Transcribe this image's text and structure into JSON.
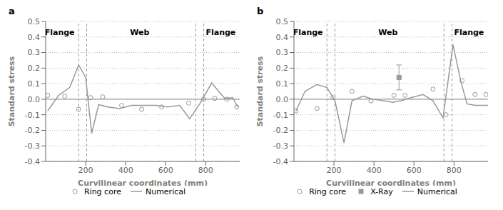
{
  "chart_data": [
    {
      "type": "line",
      "title": "a",
      "x_label": "Curvilinear coordinates (mm)",
      "y_label": "Standard stress",
      "xlim": [
        0,
        970
      ],
      "ylim": [
        -0.4,
        0.5
      ],
      "xticks": [
        200,
        400,
        600,
        800
      ],
      "yticks": [
        -0.4,
        -0.3,
        -0.2,
        -0.1,
        {
          "value": 0,
          "label": "0.0"
        },
        0.1,
        0.2,
        0.3,
        0.4,
        0.5
      ],
      "grid": true,
      "legend": "bottom",
      "vlines": [
        [
          165,
          205
        ],
        [
          750,
          790
        ]
      ],
      "annotations": [
        {
          "x": 70,
          "y": 0.43,
          "text": "Flange"
        },
        {
          "x": 470,
          "y": 0.43,
          "text": "Web"
        },
        {
          "x": 875,
          "y": 0.43,
          "text": "Flange"
        }
      ],
      "series": [
        {
          "name": "Ring core",
          "type": "scatter",
          "marker": "circle",
          "color": "#999999",
          "x": [
            10,
            95,
            165,
            225,
            285,
            380,
            480,
            580,
            715,
            790,
            845,
            905,
            955
          ],
          "values": [
            0.025,
            0.02,
            -0.065,
            0.01,
            0.015,
            -0.04,
            -0.065,
            -0.05,
            -0.025,
            0.0,
            0.005,
            0.0,
            -0.05
          ]
        },
        {
          "name": "Numerical",
          "type": "line",
          "line_style": "solid",
          "color": "#999999",
          "x": [
            10,
            65,
            120,
            165,
            200,
            230,
            265,
            310,
            370,
            430,
            490,
            550,
            610,
            670,
            720,
            770,
            830,
            865,
            895,
            935,
            960
          ],
          "values": [
            -0.075,
            0.025,
            0.075,
            0.22,
            0.14,
            -0.22,
            -0.035,
            -0.05,
            -0.06,
            -0.04,
            -0.04,
            -0.04,
            -0.05,
            -0.04,
            -0.125,
            -0.03,
            0.105,
            0.05,
            0.005,
            0.01,
            -0.05
          ]
        }
      ]
    },
    {
      "type": "line",
      "title": "b",
      "x_label": "Curvilinear coordinates (mm)",
      "y_label": "Standard stress",
      "xlim": [
        0,
        970
      ],
      "ylim": [
        -0.4,
        0.5
      ],
      "xticks": [
        200,
        400,
        600,
        800
      ],
      "yticks": [
        -0.4,
        -0.3,
        -0.2,
        -0.1,
        {
          "value": 0,
          "label": "0.0"
        },
        0.1,
        0.2,
        0.3,
        0.4,
        0.5
      ],
      "grid": true,
      "legend": "bottom",
      "vlines": [
        [
          165,
          205
        ],
        [
          750,
          790
        ]
      ],
      "annotations": [
        {
          "x": 70,
          "y": 0.43,
          "text": "Flange"
        },
        {
          "x": 470,
          "y": 0.43,
          "text": "Web"
        },
        {
          "x": 875,
          "y": 0.43,
          "text": "Flange"
        }
      ],
      "series": [
        {
          "name": "Ring core",
          "type": "scatter",
          "marker": "circle",
          "color": "#999999",
          "x": [
            10,
            115,
            195,
            290,
            385,
            500,
            555,
            695,
            760,
            840,
            905,
            960
          ],
          "values": [
            -0.075,
            -0.06,
            0.01,
            0.05,
            -0.01,
            0.025,
            0.025,
            0.065,
            -0.1,
            0.12,
            0.03,
            0.03
          ]
        },
        {
          "name": "X-Ray",
          "type": "scatter",
          "marker": "square",
          "color": "#999999",
          "x": [
            525
          ],
          "values": [
            0.14
          ],
          "error": [
            0.08
          ]
        },
        {
          "name": "Numerical",
          "type": "line",
          "line_style": "solid",
          "color": "#999999",
          "x": [
            10,
            55,
            115,
            165,
            205,
            250,
            290,
            345,
            395,
            445,
            495,
            535,
            585,
            645,
            695,
            745,
            795,
            835,
            865,
            905,
            950,
            970
          ],
          "values": [
            -0.075,
            0.05,
            0.095,
            0.075,
            -0.01,
            -0.28,
            -0.01,
            0.02,
            0.0,
            -0.01,
            -0.02,
            -0.01,
            0.01,
            0.03,
            -0.01,
            -0.12,
            0.35,
            0.11,
            -0.03,
            -0.04,
            -0.04,
            -0.04
          ]
        }
      ]
    }
  ]
}
